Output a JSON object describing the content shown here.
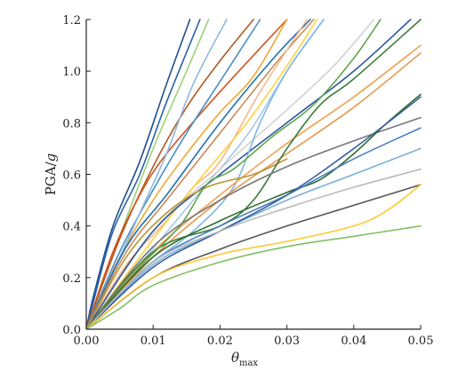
{
  "chart_data": {
    "type": "line",
    "xlabel": "θ",
    "xlabel_sub": "max",
    "ylabel_prefix": "PGA/",
    "ylabel_italic": "g",
    "xlim": [
      0,
      0.05
    ],
    "ylim": [
      0,
      1.2
    ],
    "x_ticks": [
      0,
      0.01,
      0.02,
      0.03,
      0.04,
      0.05
    ],
    "x_tick_labels": [
      "0.00",
      "0.01",
      "0.02",
      "0.03",
      "0.04",
      "0.05"
    ],
    "y_ticks": [
      0,
      0.2,
      0.4,
      0.6,
      0.8,
      1.0,
      1.2
    ],
    "y_tick_labels": [
      "0.0",
      "0.2",
      "0.4",
      "0.6",
      "0.8",
      "1.0",
      "1.2"
    ],
    "grid": false,
    "legend": "none",
    "series": [
      {
        "color": "#1f4e8c",
        "x": [
          0,
          0.001,
          0.004,
          0.008,
          0.012,
          0.0155
        ],
        "y": [
          0,
          0.12,
          0.4,
          0.65,
          0.95,
          1.2
        ]
      },
      {
        "color": "#2a5fa8",
        "x": [
          0,
          0.001,
          0.004,
          0.008,
          0.012,
          0.017
        ],
        "y": [
          0,
          0.1,
          0.38,
          0.6,
          0.88,
          1.2
        ]
      },
      {
        "color": "#9fd27a",
        "x": [
          0,
          0.005,
          0.01,
          0.015,
          0.0183
        ],
        "y": [
          0,
          0.36,
          0.7,
          1.0,
          1.2
        ]
      },
      {
        "color": "#b05a25",
        "x": [
          0,
          0.005,
          0.01,
          0.015,
          0.02,
          0.025
        ],
        "y": [
          0,
          0.35,
          0.63,
          0.86,
          1.04,
          1.2
        ]
      },
      {
        "color": "#d4531f",
        "x": [
          0,
          0.004,
          0.008,
          0.012,
          0.02,
          0.03
        ],
        "y": [
          0,
          0.3,
          0.52,
          0.68,
          0.92,
          1.2
        ]
      },
      {
        "color": "#4a90c8",
        "x": [
          0,
          0.005,
          0.01,
          0.015,
          0.02,
          0.026
        ],
        "y": [
          0,
          0.3,
          0.54,
          0.76,
          0.96,
          1.2
        ]
      },
      {
        "color": "#f0a830",
        "x": [
          0,
          0.005,
          0.01,
          0.015,
          0.02,
          0.025,
          0.03
        ],
        "y": [
          0,
          0.28,
          0.5,
          0.68,
          0.84,
          0.98,
          1.2
        ]
      },
      {
        "color": "#8fb8e0",
        "x": [
          0,
          0.004,
          0.008,
          0.012,
          0.016,
          0.021
        ],
        "y": [
          0,
          0.22,
          0.45,
          0.68,
          0.95,
          1.2
        ]
      },
      {
        "color": "#1f6fb5",
        "x": [
          0,
          0.006,
          0.012,
          0.02,
          0.028,
          0.0335
        ],
        "y": [
          0,
          0.32,
          0.52,
          0.8,
          1.05,
          1.2
        ]
      },
      {
        "color": "#c98a5a",
        "x": [
          0,
          0.006,
          0.012,
          0.02,
          0.028,
          0.034
        ],
        "y": [
          0,
          0.3,
          0.5,
          0.76,
          1.02,
          1.2
        ]
      },
      {
        "color": "#f5b88a",
        "x": [
          0,
          0.006,
          0.012,
          0.016,
          0.02,
          0.026,
          0.033
        ],
        "y": [
          0,
          0.25,
          0.42,
          0.55,
          0.65,
          0.92,
          1.2
        ]
      },
      {
        "color": "#ffd23c",
        "x": [
          0,
          0.008,
          0.016,
          0.024,
          0.03,
          0.0345
        ],
        "y": [
          0,
          0.28,
          0.55,
          0.8,
          1.02,
          1.2
        ]
      },
      {
        "color": "#a7c7ea",
        "x": [
          0,
          0.008,
          0.016,
          0.024,
          0.03,
          0.0355
        ],
        "y": [
          0,
          0.25,
          0.5,
          0.75,
          1.0,
          1.2
        ]
      },
      {
        "color": "#d2d2d2",
        "x": [
          0,
          0.01,
          0.02,
          0.03,
          0.037,
          0.043
        ],
        "y": [
          0,
          0.38,
          0.62,
          0.85,
          1.02,
          1.2
        ]
      },
      {
        "color": "#2a56a0",
        "x": [
          0,
          0.01,
          0.02,
          0.03,
          0.04,
          0.0485
        ],
        "y": [
          0,
          0.38,
          0.6,
          0.8,
          1.0,
          1.2
        ]
      },
      {
        "color": "#7db8e8",
        "x": [
          0,
          0.008,
          0.016,
          0.022,
          0.026,
          0.03,
          0.0355
        ],
        "y": [
          0,
          0.22,
          0.38,
          0.55,
          0.8,
          1.0,
          1.2
        ]
      },
      {
        "color": "#f0a050",
        "x": [
          0,
          0.01,
          0.02,
          0.03,
          0.04,
          0.05
        ],
        "y": [
          0,
          0.3,
          0.52,
          0.72,
          0.9,
          1.1
        ]
      },
      {
        "color": "#e8954c",
        "x": [
          0,
          0.01,
          0.02,
          0.03,
          0.04,
          0.05
        ],
        "y": [
          0,
          0.28,
          0.5,
          0.68,
          0.86,
          1.07
        ]
      },
      {
        "color": "#b8962e",
        "x": [
          0,
          0.006,
          0.012,
          0.018,
          0.025,
          0.03
        ],
        "y": [
          0,
          0.28,
          0.45,
          0.55,
          0.6,
          0.66
        ]
      },
      {
        "color": "#3b7d3b",
        "x": [
          0,
          0.01,
          0.02,
          0.025,
          0.03,
          0.035,
          0.04,
          0.05
        ],
        "y": [
          0,
          0.3,
          0.4,
          0.5,
          0.7,
          0.87,
          0.97,
          1.2
        ]
      },
      {
        "color": "#5fa84a",
        "x": [
          0,
          0.008,
          0.014,
          0.018,
          0.022,
          0.028,
          0.034,
          0.04,
          0.044
        ],
        "y": [
          0,
          0.24,
          0.4,
          0.56,
          0.62,
          0.75,
          0.87,
          1.05,
          1.2
        ]
      },
      {
        "color": "#777777",
        "x": [
          0,
          0.01,
          0.02,
          0.03,
          0.04,
          0.05
        ],
        "y": [
          0,
          0.32,
          0.5,
          0.63,
          0.73,
          0.82
        ]
      },
      {
        "color": "#2e6b2e",
        "x": [
          0,
          0.01,
          0.02,
          0.03,
          0.035,
          0.04,
          0.045,
          0.05
        ],
        "y": [
          0,
          0.28,
          0.42,
          0.53,
          0.58,
          0.68,
          0.8,
          0.91
        ]
      },
      {
        "color": "#4a7fc0",
        "x": [
          0,
          0.01,
          0.02,
          0.03,
          0.04,
          0.05
        ],
        "y": [
          0,
          0.26,
          0.4,
          0.52,
          0.66,
          0.78
        ]
      },
      {
        "color": "#7ab0d8",
        "x": [
          0,
          0.01,
          0.02,
          0.03,
          0.04,
          0.05
        ],
        "y": [
          0,
          0.25,
          0.38,
          0.5,
          0.6,
          0.7
        ]
      },
      {
        "color": "#3a5fa0",
        "x": [
          0,
          0.01,
          0.02,
          0.03,
          0.04,
          0.05
        ],
        "y": [
          0,
          0.24,
          0.38,
          0.52,
          0.7,
          0.9
        ]
      },
      {
        "color": "#bbbbbb",
        "x": [
          0,
          0.01,
          0.02,
          0.03,
          0.04,
          0.05
        ],
        "y": [
          0,
          0.26,
          0.38,
          0.47,
          0.55,
          0.62
        ]
      },
      {
        "color": "#555555",
        "x": [
          0,
          0.01,
          0.02,
          0.03,
          0.04,
          0.05
        ],
        "y": [
          0,
          0.2,
          0.31,
          0.4,
          0.48,
          0.56
        ]
      },
      {
        "color": "#ffc830",
        "x": [
          0,
          0.01,
          0.02,
          0.03,
          0.04,
          0.045,
          0.05
        ],
        "y": [
          0,
          0.2,
          0.29,
          0.34,
          0.4,
          0.46,
          0.56
        ]
      },
      {
        "color": "#80c060",
        "x": [
          0,
          0.005,
          0.01,
          0.02,
          0.03,
          0.04,
          0.05
        ],
        "y": [
          0,
          0.08,
          0.17,
          0.26,
          0.32,
          0.36,
          0.4
        ]
      }
    ]
  }
}
